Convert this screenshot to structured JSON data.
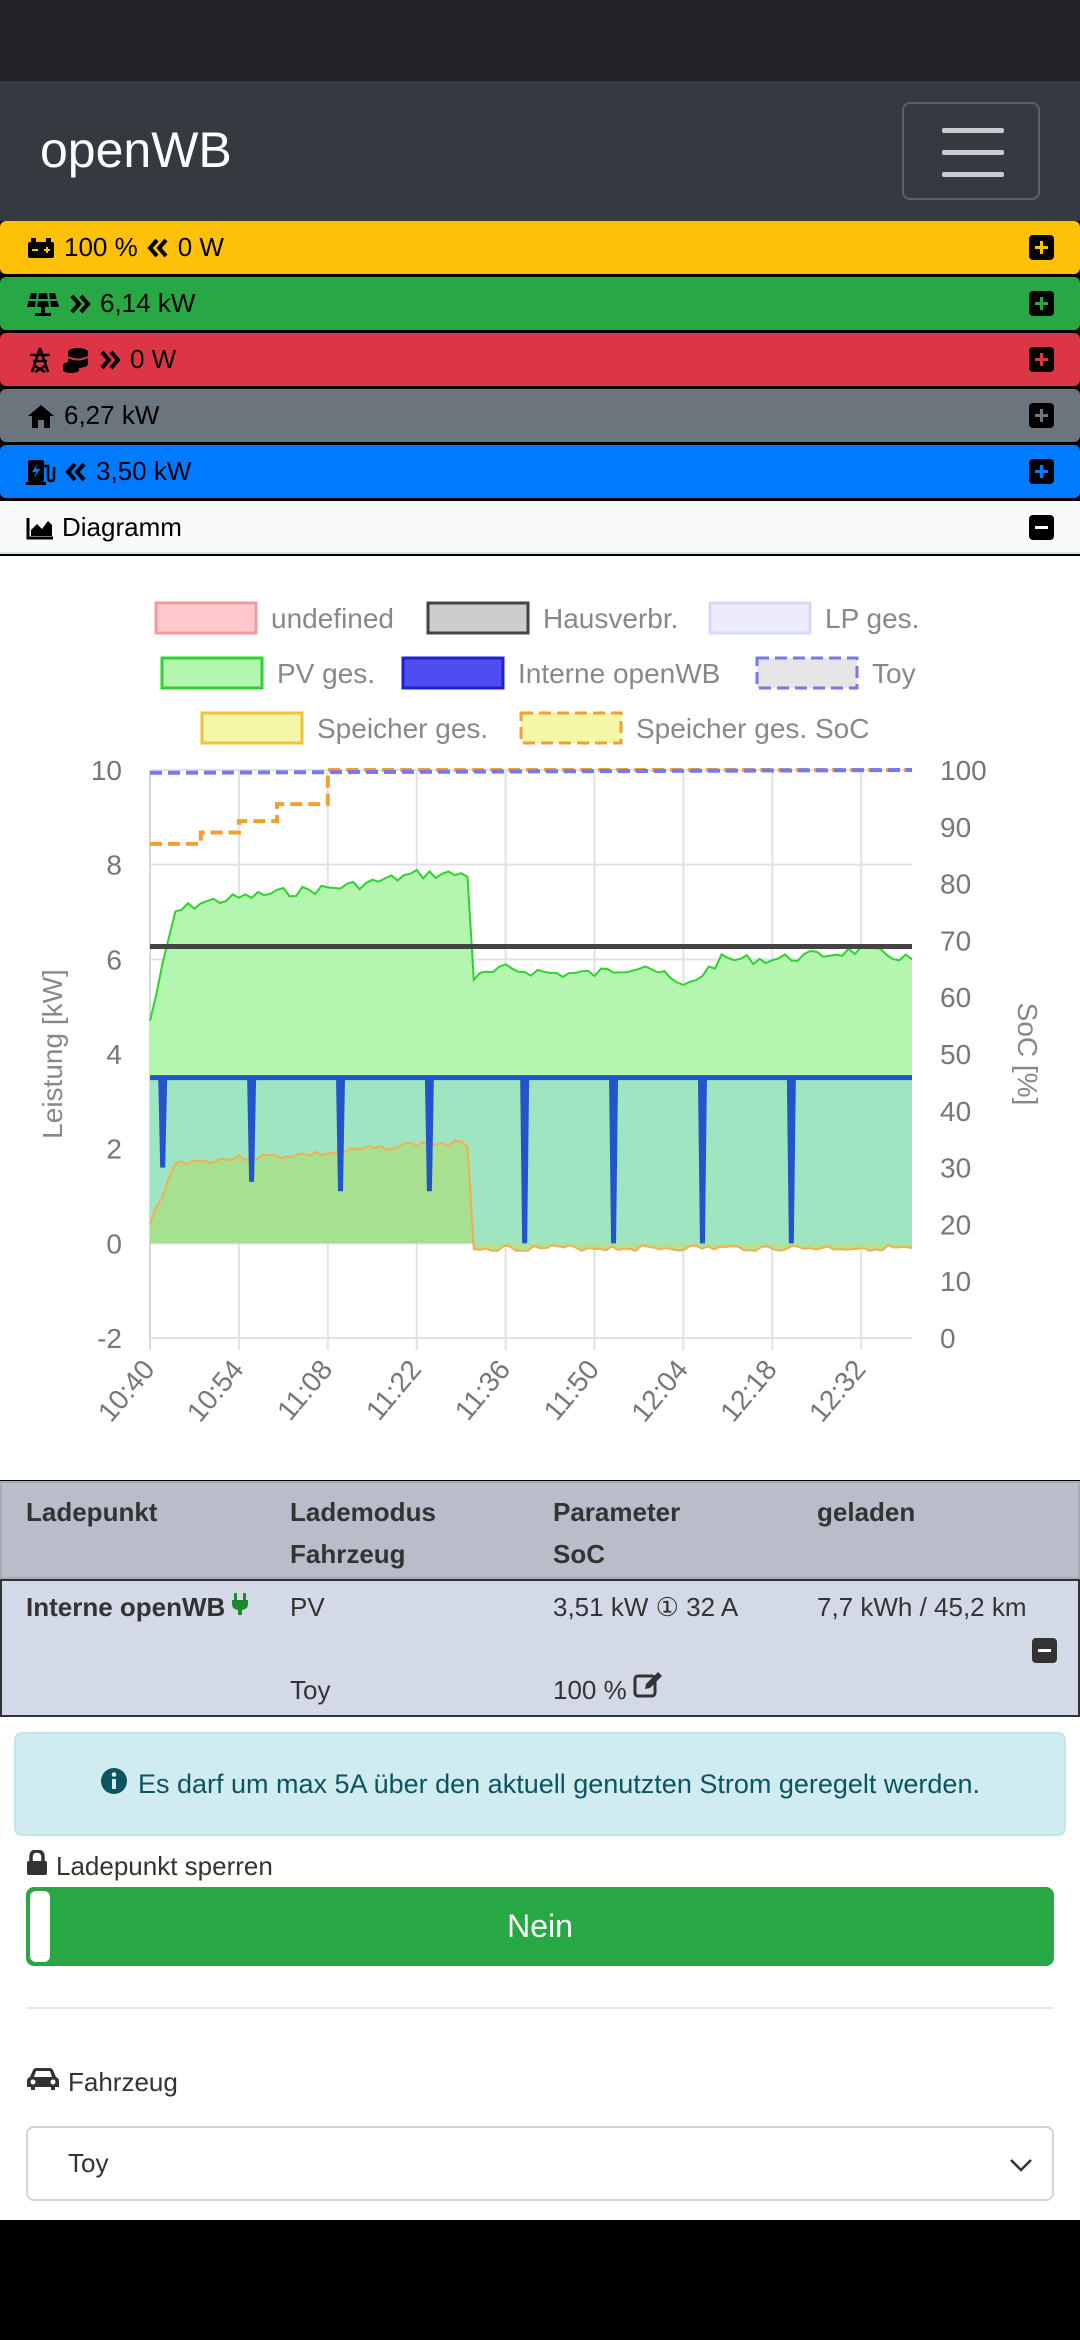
{
  "app": {
    "title": "openWB"
  },
  "bars": {
    "battery": {
      "text": "100 % 0 W",
      "soc": "100 %",
      "power": "0 W",
      "color": "#ffc107"
    },
    "pv": {
      "power": "6,14 kW",
      "color": "#28a745"
    },
    "grid": {
      "power": "0 W",
      "color": "#dc3545"
    },
    "house": {
      "power": "6,27 kW",
      "color": "#6c757d"
    },
    "charge": {
      "power": "3,50 kW",
      "color": "#007bff"
    },
    "diagram": {
      "label": "Diagramm",
      "color": "#f8f9fa"
    }
  },
  "chart_data": {
    "type": "line",
    "ylabel": "Leistung [kW]",
    "y2label": "SoC [%]",
    "ylim": [
      -2,
      10
    ],
    "y2lim": [
      0,
      100
    ],
    "y_ticks": [
      "10",
      "8",
      "6",
      "4",
      "2",
      "0",
      "-2"
    ],
    "y2_ticks": [
      "100",
      "90",
      "80",
      "70",
      "60",
      "50",
      "40",
      "30",
      "20",
      "10",
      "0"
    ],
    "x_ticks": [
      "10:40",
      "10:54",
      "11:08",
      "11:22",
      "11:36",
      "11:50",
      "12:04",
      "12:18",
      "12:32"
    ],
    "legend": [
      "undefined",
      "Hausverbr.",
      "LP ges.",
      "PV ges.",
      "Interne openWB",
      "Toy",
      "Speicher ges.",
      "Speicher ges. SoC"
    ],
    "grid": true,
    "series": [
      {
        "name": "PV ges.",
        "x": [
          "10:40",
          "10:44",
          "10:48",
          "10:54",
          "11:00",
          "11:08",
          "11:14",
          "11:22",
          "11:30",
          "11:31",
          "11:36",
          "11:44",
          "11:50",
          "11:58",
          "12:04",
          "12:10",
          "12:18",
          "12:26",
          "12:32",
          "12:40"
        ],
        "values": [
          4.7,
          7.0,
          7.2,
          7.3,
          7.4,
          7.5,
          7.6,
          7.8,
          7.8,
          5.6,
          5.8,
          5.7,
          5.7,
          5.9,
          5.4,
          6.0,
          6.0,
          6.1,
          6.2,
          6.0
        ]
      },
      {
        "name": "Hausverbr.",
        "x": [
          "10:40",
          "12:40"
        ],
        "values": [
          6.27,
          6.27
        ]
      },
      {
        "name": "Interne openWB",
        "x": [
          "10:40",
          "12:40"
        ],
        "values": [
          3.5,
          3.5
        ]
      },
      {
        "name": "Speicher ges.",
        "x": [
          "10:40",
          "10:44",
          "10:54",
          "11:08",
          "11:22",
          "11:30",
          "11:31",
          "12:40"
        ],
        "values": [
          0.4,
          1.7,
          1.8,
          1.9,
          2.1,
          2.1,
          -0.1,
          -0.1
        ]
      },
      {
        "name": "Speicher ges. SoC",
        "x": [
          "10:40",
          "10:48",
          "10:54",
          "11:00",
          "11:08",
          "12:40"
        ],
        "values": [
          87,
          89,
          91,
          94,
          100,
          100
        ]
      },
      {
        "name": "Toy",
        "x": [
          "10:40",
          "12:40"
        ],
        "values": [
          99.5,
          100
        ]
      }
    ],
    "colors": {
      "undefined": "#f29b9f",
      "hausverbr": "#444444",
      "lp": "#d8d8f8",
      "pv": "#2dd42d",
      "pv_fill": "#b4f5b0",
      "interne": "#2255cc",
      "interne_fill": "#9de3c4",
      "toy": "#7777ee",
      "speicher": "#f0b050",
      "speicher_fill": "#a8df8c",
      "soc": "#f0a030"
    }
  },
  "table": {
    "headers": {
      "ladepunkt": "Ladepunkt",
      "lademodus": "Lademodus",
      "fahrzeug": "Fahrzeug",
      "parameter": "Parameter",
      "soc": "SoC",
      "geladen": "geladen"
    },
    "row": {
      "name": "Interne openWB",
      "mode": "PV",
      "params": "3,51 kW ① 32 A",
      "charged": "7,7 kWh / 45,2 km",
      "vehicle": "Toy",
      "soc": "100 %"
    }
  },
  "details": {
    "alert": "Es darf um max 5A über den aktuell genutzten Strom geregelt werden.",
    "lock_label": "Ladepunkt sperren",
    "lock_value": "Nein",
    "vehicle_label": "Fahrzeug",
    "vehicle_value": "Toy"
  }
}
